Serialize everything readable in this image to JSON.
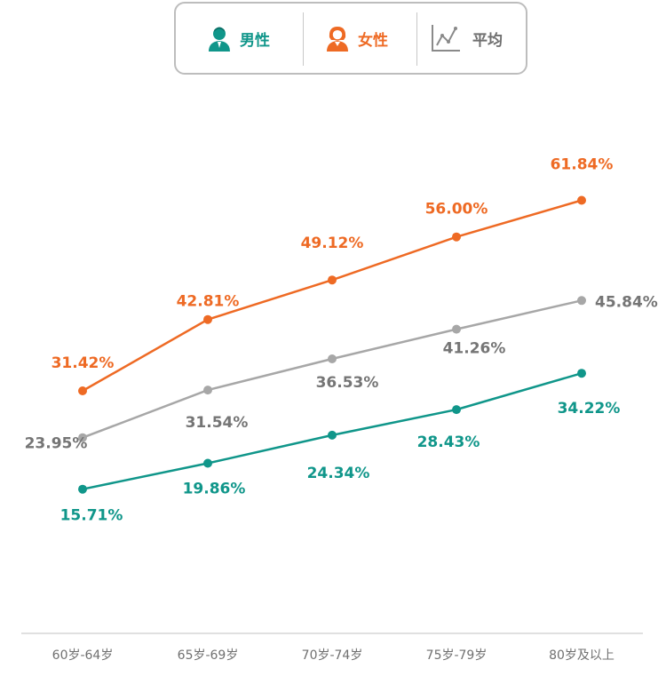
{
  "legend": {
    "male_label": "男性",
    "female_label": "女性",
    "avg_label": "平均"
  },
  "colors": {
    "male": "#10968a",
    "female": "#ee6a24",
    "average": "#a7a7a7",
    "avg_text": "#757575",
    "axis": "#d6d6d6"
  },
  "chart_data": {
    "type": "line",
    "categories": [
      "60岁-64岁",
      "65岁-69岁",
      "70岁-74岁",
      "75岁-79岁",
      "80岁及以上"
    ],
    "ylim": [
      10,
      65
    ],
    "grid": false,
    "legend_position": "top-center",
    "series": [
      {
        "name": "女性",
        "key": "female",
        "values": [
          31.42,
          42.81,
          49.12,
          56.0,
          61.84
        ],
        "labels": [
          "31.42%",
          "42.81%",
          "49.12%",
          "56.00%",
          "61.84%"
        ]
      },
      {
        "name": "平均",
        "key": "average",
        "values": [
          23.95,
          31.54,
          36.53,
          41.26,
          45.84
        ],
        "labels": [
          "23.95%",
          "31.54%",
          "36.53%",
          "41.26%",
          "45.84%"
        ]
      },
      {
        "name": "男性",
        "key": "male",
        "values": [
          15.71,
          19.86,
          24.34,
          28.43,
          34.22
        ],
        "labels": [
          "15.71%",
          "19.86%",
          "24.34%",
          "28.43%",
          "34.22%"
        ]
      }
    ]
  }
}
